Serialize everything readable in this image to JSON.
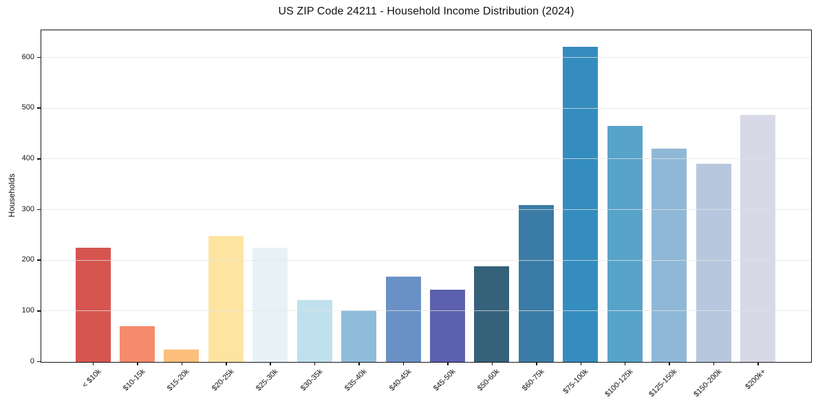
{
  "chart_data": {
    "type": "bar",
    "title": "US ZIP Code 24211 - Household Income Distribution (2024)",
    "xlabel": "",
    "ylabel": "Households",
    "categories": [
      "< $10k",
      "$10-15k",
      "$15-20k",
      "$20-25k",
      "$25-30k",
      "$30-35k",
      "$35-40k",
      "$40-45k",
      "$45-50k",
      "$50-60k",
      "$60-75k",
      "$75-100k",
      "$100-125k",
      "$125-150k",
      "$150-200k",
      "$200k+"
    ],
    "values": [
      225,
      70,
      25,
      249,
      226,
      122,
      102,
      168,
      142,
      189,
      309,
      622,
      465,
      421,
      391,
      487
    ],
    "bar_colors": [
      "#d6554f",
      "#f58b6c",
      "#fcbf7b",
      "#fde4a0",
      "#e7f1f6",
      "#bfe0ed",
      "#90bcdc",
      "#6991c5",
      "#5d60ae",
      "#36617b",
      "#3a7ca5",
      "#358cbe",
      "#58a3c8",
      "#8fb8d6",
      "#b7c8de",
      "#d7d9e6"
    ],
    "y_ticks": [
      0,
      100,
      200,
      300,
      400,
      500,
      600
    ],
    "ylim": [
      0,
      653
    ],
    "grid": "horizontal",
    "gridline_color": "#e4e4e4",
    "legend": "none",
    "background_color": "#ffffff",
    "spine_color": "#141414"
  }
}
